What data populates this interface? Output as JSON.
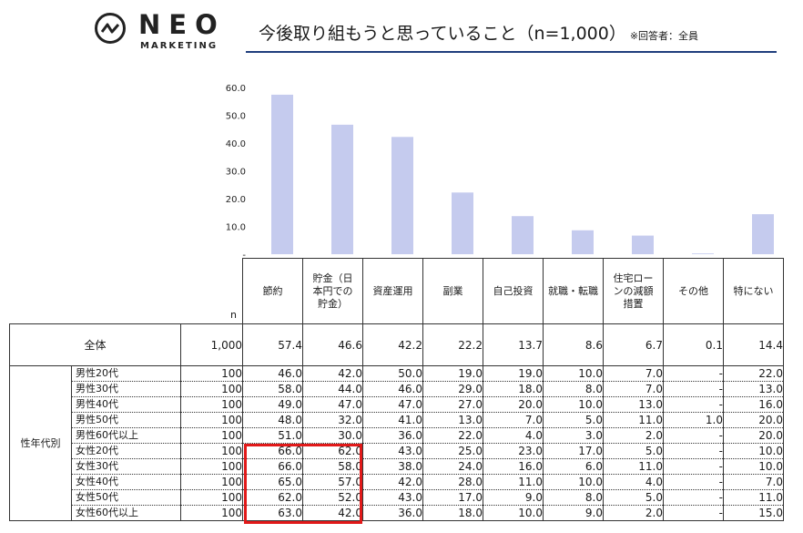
{
  "logo": {
    "word": "NEO",
    "sub": "MARKETING",
    "icon": "neo-marketing-logo-icon"
  },
  "title": {
    "main": "今後取り組もうと思っていること（n=1,000）",
    "note": "※回答者：全員"
  },
  "colors": {
    "bar": "#c5cbee",
    "rule": "#1f3e7c",
    "highlight": "#e11919"
  },
  "chart_data": {
    "type": "bar",
    "categories": [
      "節約",
      "貯金（日本円での貯金）",
      "資産運用",
      "副業",
      "自己投資",
      "就職・転職",
      "住宅ローンの減額措置",
      "その他",
      "特にない"
    ],
    "values": [
      57.4,
      46.6,
      42.2,
      22.2,
      13.7,
      8.6,
      6.7,
      0.1,
      14.4
    ],
    "ylim": [
      0,
      60
    ],
    "yticks": [
      "60.0",
      "50.0",
      "40.0",
      "30.0",
      "20.0",
      "10.0",
      "-"
    ],
    "grid": false
  },
  "table": {
    "n_header": "n",
    "headers": [
      "節約",
      "貯金（日\n本円での\n貯金）",
      "資産運用",
      "副業",
      "自己投資",
      "就職・転職",
      "住宅ロー\nンの減額\n措置",
      "その他",
      "特にない"
    ],
    "total": {
      "label": "全体",
      "n": "1,000",
      "values": [
        "57.4",
        "46.6",
        "42.2",
        "22.2",
        "13.7",
        "8.6",
        "6.7",
        "0.1",
        "14.4"
      ]
    },
    "group_label": "性年代別",
    "rows": [
      {
        "label": "男性20代",
        "n": "100",
        "values": [
          "46.0",
          "42.0",
          "50.0",
          "19.0",
          "19.0",
          "10.0",
          "7.0",
          "-",
          "22.0"
        ]
      },
      {
        "label": "男性30代",
        "n": "100",
        "values": [
          "58.0",
          "44.0",
          "46.0",
          "29.0",
          "18.0",
          "8.0",
          "7.0",
          "-",
          "13.0"
        ]
      },
      {
        "label": "男性40代",
        "n": "100",
        "values": [
          "49.0",
          "47.0",
          "47.0",
          "27.0",
          "20.0",
          "10.0",
          "13.0",
          "-",
          "16.0"
        ]
      },
      {
        "label": "男性50代",
        "n": "100",
        "values": [
          "48.0",
          "32.0",
          "41.0",
          "13.0",
          "7.0",
          "5.0",
          "11.0",
          "1.0",
          "20.0"
        ]
      },
      {
        "label": "男性60代以上",
        "n": "100",
        "values": [
          "51.0",
          "30.0",
          "36.0",
          "22.0",
          "4.0",
          "3.0",
          "2.0",
          "-",
          "20.0"
        ]
      },
      {
        "label": "女性20代",
        "n": "100",
        "values": [
          "66.0",
          "62.0",
          "43.0",
          "25.0",
          "23.0",
          "17.0",
          "5.0",
          "-",
          "10.0"
        ]
      },
      {
        "label": "女性30代",
        "n": "100",
        "values": [
          "66.0",
          "58.0",
          "38.0",
          "24.0",
          "16.0",
          "6.0",
          "11.0",
          "-",
          "10.0"
        ]
      },
      {
        "label": "女性40代",
        "n": "100",
        "values": [
          "65.0",
          "57.0",
          "42.0",
          "28.0",
          "11.0",
          "10.0",
          "4.0",
          "-",
          "7.0"
        ]
      },
      {
        "label": "女性50代",
        "n": "100",
        "values": [
          "62.0",
          "52.0",
          "43.0",
          "17.0",
          "9.0",
          "8.0",
          "5.0",
          "-",
          "11.0"
        ]
      },
      {
        "label": "女性60代以上",
        "n": "100",
        "values": [
          "63.0",
          "42.0",
          "36.0",
          "18.0",
          "10.0",
          "9.0",
          "2.0",
          "-",
          "15.0"
        ]
      }
    ]
  }
}
